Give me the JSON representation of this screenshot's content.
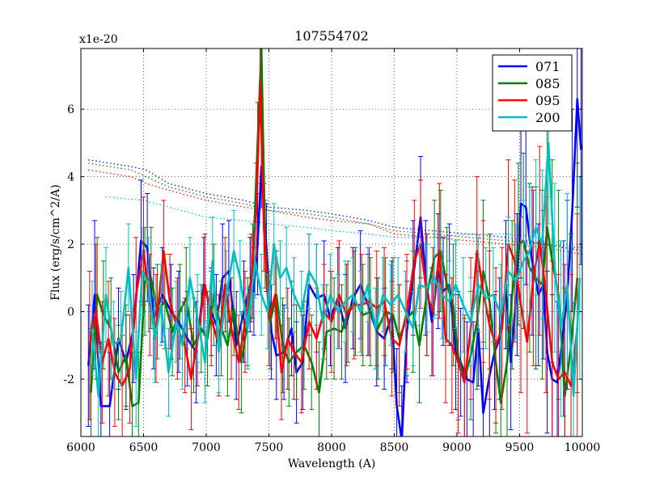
{
  "chart_data": {
    "type": "line",
    "title": "107554702",
    "xlabel": "Wavelength (A)",
    "ylabel": "Flux (erg/s/cm^2/A)",
    "offset_label": "x1e-20",
    "xlim": [
      6000,
      10000
    ],
    "ylim": [
      -3.7,
      7.8
    ],
    "xticks": [
      6000,
      6500,
      7000,
      7500,
      8000,
      8500,
      9000,
      9500,
      10000
    ],
    "yticks": [
      -2,
      0,
      2,
      4,
      6
    ],
    "ytick_labels": [
      "-2",
      "0",
      "2",
      "4",
      "6"
    ],
    "grid": true,
    "legend_position": "top-right",
    "series": [
      {
        "name": "071",
        "color": "#0000ff",
        "x": [
          6060,
          6110,
          6160,
          6230,
          6300,
          6360,
          6420,
          6480,
          6530,
          6580,
          6650,
          6720,
          6780,
          6850,
          6920,
          6980,
          7040,
          7080,
          7130,
          7180,
          7240,
          7300,
          7350,
          7380,
          7410,
          7440,
          7480,
          7520,
          7560,
          7620,
          7680,
          7720,
          7770,
          7820,
          7880,
          7940,
          7990,
          8050,
          8110,
          8170,
          8230,
          8290,
          8360,
          8420,
          8480,
          8520,
          8560,
          8600,
          8650,
          8710,
          8750,
          8800,
          8850,
          8890,
          8940,
          8990,
          9030,
          9080,
          9130,
          9170,
          9210,
          9260,
          9300,
          9340,
          9390,
          9430,
          9480,
          9510,
          9550,
          9600,
          9650,
          9690,
          9720,
          9760,
          9800,
          9850,
          9880,
          9920,
          9960,
          9990
        ],
        "y": [
          -1.6,
          0.5,
          -2.8,
          -2.8,
          -0.8,
          -1.5,
          -0.5,
          2.1,
          1.9,
          -0.2,
          0.5,
          0.0,
          -0.3,
          -0.8,
          -1.2,
          0.8,
          0.0,
          -0.4,
          1.0,
          1.2,
          -1.0,
          0.0,
          0.8,
          0.6,
          2.0,
          4.3,
          1.9,
          -0.6,
          -1.3,
          -1.2,
          -0.5,
          -1.8,
          -1.5,
          0.8,
          0.4,
          0.5,
          -0.2,
          0.4,
          -0.5,
          0.4,
          0.8,
          0.2,
          -0.6,
          -0.8,
          -0.1,
          -2.8,
          -3.8,
          -0.6,
          1.0,
          2.8,
          1.0,
          -0.3,
          1.2,
          0.6,
          0.8,
          -1.2,
          -1.5,
          -2.0,
          -2.1,
          -0.5,
          -3.0,
          -1.9,
          -1.2,
          -0.8,
          0.8,
          -1.5,
          0.8,
          3.2,
          3.1,
          1.5,
          0.5,
          0.8,
          -1.2,
          -2.0,
          -2.1,
          -0.5,
          0.5,
          3.0,
          6.3,
          4.8
        ],
        "errors": [
          1.8,
          2.2,
          1.9,
          1.6,
          1.5,
          1.4,
          1.6,
          1.8,
          1.6,
          1.5,
          1.4,
          1.4,
          1.5,
          1.4,
          1.5,
          1.4,
          1.3,
          1.5,
          1.6,
          1.5,
          1.6,
          1.5,
          1.4,
          1.3,
          1.5,
          1.2,
          1.3,
          1.4,
          1.3,
          1.4,
          1.4,
          1.5,
          1.4,
          1.5,
          1.6,
          1.6,
          1.4,
          1.5,
          1.6,
          1.5,
          1.6,
          1.5,
          1.6,
          1.5,
          1.6,
          1.7,
          1.6,
          1.5,
          1.7,
          1.8,
          1.7,
          1.6,
          1.7,
          1.6,
          1.8,
          1.7,
          1.6,
          1.7,
          1.8,
          1.7,
          1.9,
          1.8,
          1.7,
          1.8,
          1.9,
          2.0,
          2.1,
          2.2,
          2.3,
          2.2,
          2.1,
          2.2,
          2.4,
          2.5,
          2.4,
          2.6,
          2.8,
          3.0,
          3.2,
          3.4
        ]
      },
      {
        "name": "085",
        "color": "#008000",
        "x": [
          6080,
          6130,
          6180,
          6240,
          6300,
          6360,
          6410,
          6460,
          6510,
          6560,
          6610,
          6670,
          6730,
          6790,
          6840,
          6900,
          6960,
          7010,
          7060,
          7120,
          7170,
          7220,
          7280,
          7330,
          7370,
          7410,
          7440,
          7470,
          7510,
          7560,
          7610,
          7660,
          7720,
          7780,
          7840,
          7900,
          7960,
          8020,
          8080,
          8130,
          8190,
          8250,
          8310,
          8370,
          8430,
          8490,
          8540,
          8600,
          8650,
          8700,
          8760,
          8820,
          8870,
          8920,
          8970,
          9010,
          9060,
          9110,
          9160,
          9210,
          9260,
          9310,
          9350,
          9400,
          9440,
          9490,
          9530,
          9580,
          9630,
          9680,
          9720,
          9760,
          9810,
          9860,
          9910,
          9960
        ],
        "y": [
          -2.4,
          0.5,
          -0.1,
          -0.5,
          -1.8,
          -1.3,
          -2.8,
          -2.7,
          0.9,
          1.0,
          0.0,
          0.3,
          -0.6,
          0.0,
          0.4,
          -1.0,
          -0.5,
          -0.8,
          0.5,
          -0.5,
          -1.0,
          0.1,
          -1.5,
          -0.3,
          1.2,
          5.0,
          7.8,
          2.0,
          -0.3,
          0.5,
          -1.0,
          -1.5,
          -1.2,
          -1.0,
          -1.5,
          -2.4,
          -0.6,
          -0.5,
          -0.6,
          0.0,
          0.3,
          -0.1,
          0.0,
          -0.5,
          0.0,
          -0.1,
          -0.8,
          -0.2,
          0.0,
          -1.0,
          0.5,
          1.6,
          1.8,
          0.8,
          0.2,
          -1.3,
          -2.0,
          -1.3,
          -0.3,
          1.2,
          0.3,
          -1.5,
          -2.7,
          -1.5,
          0.5,
          2.0,
          2.1,
          1.3,
          1.0,
          0.8,
          2.5,
          1.5,
          0.5,
          -2.5,
          -1.0,
          1.0
        ],
        "errors": [
          1.9,
          1.7,
          1.6,
          1.5,
          1.4,
          1.5,
          1.6,
          1.5,
          1.6,
          1.5,
          1.4,
          1.4,
          1.3,
          1.4,
          1.5,
          1.4,
          1.3,
          1.4,
          1.5,
          1.4,
          1.5,
          1.4,
          1.5,
          1.3,
          1.4,
          1.2,
          1.5,
          1.3,
          1.4,
          1.3,
          1.4,
          1.3,
          1.4,
          1.3,
          1.4,
          1.5,
          1.4,
          1.5,
          1.4,
          1.5,
          1.6,
          1.5,
          1.6,
          1.5,
          1.6,
          1.7,
          1.6,
          1.7,
          1.8,
          1.7,
          1.8,
          1.7,
          1.8,
          1.7,
          1.8,
          1.9,
          1.8,
          1.9,
          2.0,
          2.1,
          2.0,
          2.1,
          2.2,
          2.3,
          2.2,
          2.4,
          2.6,
          2.5,
          2.7,
          2.8,
          2.9,
          3.0,
          3.1,
          3.2,
          3.3,
          3.4
        ]
      },
      {
        "name": "095",
        "color": "#ff0000",
        "x": [
          6070,
          6120,
          6170,
          6220,
          6270,
          6330,
          6390,
          6440,
          6500,
          6550,
          6600,
          6660,
          6710,
          6770,
          6830,
          6880,
          6930,
          6990,
          7040,
          7100,
          7150,
          7200,
          7260,
          7310,
          7360,
          7400,
          7430,
          7460,
          7500,
          7550,
          7600,
          7650,
          7700,
          7760,
          7820,
          7880,
          7940,
          8000,
          8060,
          8120,
          8180,
          8240,
          8300,
          8360,
          8420,
          8480,
          8540,
          8600,
          8660,
          8710,
          8760,
          8810,
          8860,
          8910,
          8960,
          9010,
          9060,
          9110,
          9160,
          9210,
          9260,
          9310,
          9360,
          9410,
          9460,
          9510,
          9560,
          9610,
          9660,
          9710,
          9760,
          9810,
          9860,
          9910,
          9960
        ],
        "y": [
          -1.0,
          0.0,
          -1.5,
          -0.8,
          -1.8,
          -2.2,
          -1.7,
          0.5,
          1.8,
          0.2,
          -0.5,
          1.8,
          0.3,
          -0.5,
          -1.0,
          -2.0,
          -0.8,
          0.8,
          -0.2,
          -1.0,
          0.8,
          -0.5,
          -1.5,
          -0.3,
          1.0,
          3.0,
          6.8,
          2.5,
          -0.2,
          0.5,
          -1.8,
          -0.8,
          -1.2,
          -1.5,
          -0.3,
          -0.8,
          0.0,
          -0.3,
          0.5,
          -0.1,
          0.2,
          0.2,
          0.3,
          0.1,
          0.3,
          -0.8,
          -1.0,
          0.0,
          1.5,
          2.0,
          0.5,
          0.0,
          1.8,
          -0.8,
          -1.0,
          -1.5,
          -2.1,
          -0.5,
          1.8,
          0.6,
          -0.4,
          -1.0,
          -0.5,
          2.0,
          1.5,
          0.2,
          -0.9,
          1.0,
          2.1,
          0.5,
          -1.5,
          -2.0,
          -1.8,
          -2.2,
          -0.5
        ],
        "errors": [
          2.2,
          2.0,
          1.8,
          1.7,
          1.6,
          1.5,
          1.6,
          1.7,
          1.6,
          1.5,
          1.6,
          1.5,
          1.4,
          1.5,
          1.4,
          1.5,
          1.4,
          1.5,
          1.4,
          1.5,
          1.4,
          1.5,
          1.4,
          1.5,
          1.3,
          1.4,
          1.2,
          1.3,
          1.4,
          1.3,
          1.4,
          1.5,
          1.4,
          1.5,
          1.4,
          1.5,
          1.4,
          1.5,
          1.6,
          1.5,
          1.6,
          1.5,
          1.6,
          1.7,
          1.6,
          1.7,
          1.8,
          1.7,
          1.8,
          1.9,
          1.8,
          1.9,
          2.0,
          1.9,
          2.0,
          2.1,
          2.0,
          2.1,
          2.2,
          2.1,
          2.2,
          2.3,
          2.4,
          2.5,
          2.4,
          2.6,
          2.7,
          2.6,
          2.8,
          2.9,
          3.0,
          3.1,
          3.2,
          3.3,
          3.4
        ]
      },
      {
        "name": "200",
        "color": "#00bfbf",
        "x": [
          6090,
          6140,
          6200,
          6260,
          6320,
          6380,
          6440,
          6490,
          6540,
          6590,
          6640,
          6700,
          6760,
          6810,
          6870,
          6930,
          6990,
          7050,
          7100,
          7160,
          7220,
          7270,
          7330,
          7390,
          7440,
          7490,
          7540,
          7590,
          7640,
          7700,
          7760,
          7820,
          7880,
          7930,
          7990,
          8050,
          8110,
          8170,
          8230,
          8290,
          8350,
          8410,
          8470,
          8530,
          8590,
          8650,
          8700,
          8760,
          8820,
          8880,
          8940,
          8990,
          9050,
          9110,
          9170,
          9230,
          9290,
          9350,
          9410,
          9470,
          9530,
          9580,
          9630,
          9680,
          9730,
          9780,
          9830,
          9880,
          9930,
          9980
        ],
        "y": [
          -0.5,
          -2.5,
          0.5,
          -1.0,
          -0.8,
          1.3,
          -2.0,
          1.2,
          0.8,
          -0.8,
          0.2,
          -1.8,
          -0.3,
          -1.0,
          1.0,
          -0.2,
          -1.5,
          1.5,
          -1.2,
          0.5,
          1.8,
          1.0,
          -0.5,
          1.5,
          0.5,
          0.0,
          2.0,
          1.0,
          1.3,
          0.5,
          0.0,
          1.2,
          0.8,
          -0.3,
          0.5,
          0.0,
          0.3,
          0.5,
          0.0,
          0.8,
          -0.5,
          0.5,
          0.2,
          0.5,
          0.0,
          -0.5,
          0.8,
          0.7,
          1.0,
          0.5,
          0.3,
          0.8,
          0.2,
          -0.3,
          0.8,
          0.4,
          0.5,
          -0.1,
          1.2,
          0.9,
          1.5,
          1.8,
          2.5,
          2.0,
          5.0,
          1.3,
          -0.5,
          0.8,
          -2.5,
          1.0
        ],
        "errors": [
          1.4,
          1.5,
          1.4,
          1.3,
          1.4,
          1.3,
          1.4,
          1.3,
          1.4,
          1.3,
          1.2,
          1.3,
          1.2,
          1.3,
          1.2,
          1.3,
          1.2,
          1.3,
          1.2,
          1.3,
          1.2,
          1.1,
          1.2,
          1.1,
          1.2,
          1.1,
          1.2,
          1.1,
          1.2,
          1.1,
          1.2,
          1.1,
          1.2,
          1.1,
          1.2,
          1.1,
          1.2,
          1.1,
          1.2,
          1.1,
          1.2,
          1.1,
          1.2,
          1.1,
          1.2,
          1.1,
          1.2,
          1.3,
          1.2,
          1.3,
          1.2,
          1.3,
          1.4,
          1.3,
          1.4,
          1.5,
          1.4,
          1.5,
          1.6,
          1.7,
          1.8,
          1.9,
          2.0,
          2.2,
          2.4,
          2.5,
          2.6,
          2.7,
          2.8,
          3.0
        ]
      }
    ],
    "error_series": [
      {
        "name": "071-error",
        "color": "#0000ff",
        "x": [
          6060,
          6400,
          6520,
          6700,
          7000,
          7300,
          7500,
          7800,
          8000,
          8300,
          8500,
          8800,
          9100,
          9400,
          9700,
          10000
        ],
        "y": [
          4.5,
          4.3,
          4.2,
          3.8,
          3.5,
          3.3,
          3.1,
          3.0,
          2.9,
          2.7,
          2.5,
          2.4,
          2.3,
          2.2,
          2.0,
          1.8
        ]
      },
      {
        "name": "085-error",
        "color": "#008000",
        "x": [
          6060,
          6400,
          6520,
          6700,
          7000,
          7300,
          7500,
          7800,
          8000,
          8300,
          8500,
          8800,
          9100,
          9400,
          9700,
          10000
        ],
        "y": [
          4.4,
          4.2,
          4.0,
          3.7,
          3.4,
          3.2,
          3.0,
          2.9,
          2.8,
          2.6,
          2.4,
          2.3,
          2.2,
          2.1,
          2.0,
          1.9
        ]
      },
      {
        "name": "095-error",
        "color": "#ff0000",
        "x": [
          6060,
          6400,
          6520,
          6700,
          7000,
          7300,
          7500,
          7800,
          8000,
          8300,
          8500,
          8800,
          9100,
          9400,
          9700,
          10000
        ],
        "y": [
          4.2,
          4.0,
          3.8,
          3.6,
          3.3,
          3.1,
          3.0,
          2.8,
          2.7,
          2.6,
          2.3,
          2.2,
          2.1,
          2.0,
          1.9,
          1.7
        ]
      },
      {
        "name": "200-error",
        "color": "#00bfbf",
        "x": [
          6200,
          6500,
          6700,
          7000,
          7300,
          7500,
          7800,
          8000,
          8300,
          8500,
          8800,
          9100,
          9400,
          9700,
          10000
        ],
        "y": [
          3.4,
          3.3,
          3.1,
          2.8,
          2.7,
          2.6,
          2.5,
          2.4,
          2.3,
          2.2,
          2.2,
          2.3,
          2.3,
          2.2,
          1.8
        ]
      }
    ]
  }
}
